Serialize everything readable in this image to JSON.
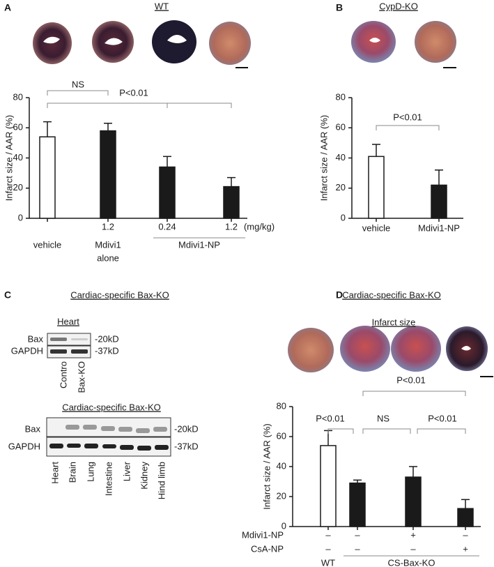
{
  "panel_labels": [
    "A",
    "B",
    "C",
    "D"
  ],
  "chart_data": [
    {
      "type": "bar",
      "title": "WT",
      "y_label": "Infarct size / AAR (%)",
      "categories": [
        null,
        "1.2",
        "0.24",
        "1.2"
      ],
      "x_unit": "(mg/kg)",
      "values": [
        54,
        58,
        34,
        21
      ],
      "errors": [
        10,
        5,
        7,
        6
      ],
      "colors": [
        "#ffffff",
        "#1a1a1a",
        "#1a1a1a",
        "#1a1a1a"
      ],
      "ylim": [
        0,
        80
      ],
      "yticks": [
        0,
        20,
        40,
        60,
        80
      ],
      "groups": [
        {
          "label": [
            "vehicle"
          ],
          "span": [
            0,
            0
          ]
        },
        {
          "label": [
            "Mdivi1",
            "alone"
          ],
          "span": [
            1,
            1
          ]
        },
        {
          "label": [
            "Mdivi1-NP"
          ],
          "span": [
            2,
            3
          ]
        }
      ],
      "brackets": [
        {
          "pair": [
            0,
            1
          ],
          "label": "NS"
        },
        {
          "pair": [
            0,
            2
          ]
        },
        {
          "pair": [
            0,
            3
          ],
          "label": "P<0.01"
        }
      ]
    },
    {
      "type": "bar",
      "title": "CypD-KO",
      "y_label": "Infarct size / AAR (%)",
      "categories": [
        "vehicle",
        "Mdivi1-NP"
      ],
      "values": [
        41,
        22
      ],
      "errors": [
        8,
        10
      ],
      "colors": [
        "#ffffff",
        "#1a1a1a"
      ],
      "ylim": [
        0,
        80
      ],
      "yticks": [
        0,
        20,
        40,
        60,
        80
      ],
      "brackets": [
        {
          "pair": [
            0,
            1
          ],
          "label": "P<0.01"
        }
      ]
    },
    {
      "type": "bar",
      "title": "Cardiac-specific Bax-KO",
      "subtitle": "Infarct size",
      "y_label": "Infarct size / AAR (%)",
      "values": [
        54,
        29,
        33,
        12
      ],
      "errors": [
        10,
        2,
        7,
        6
      ],
      "colors": [
        "#ffffff",
        "#1a1a1a",
        "#1a1a1a",
        "#1a1a1a"
      ],
      "ylim": [
        0,
        80
      ],
      "yticks": [
        0,
        20,
        40,
        60,
        80
      ],
      "conditions": [
        {
          "name": "Mdivi1-NP",
          "values": [
            "–",
            "–",
            "+",
            "–"
          ]
        },
        {
          "name": "CsA-NP",
          "values": [
            "–",
            "–",
            "–",
            "+"
          ]
        }
      ],
      "groups": [
        {
          "label": [
            "WT"
          ],
          "span": [
            0,
            0
          ]
        },
        {
          "label": [
            "CS-Bax-KO"
          ],
          "span": [
            1,
            3
          ]
        }
      ],
      "brackets": [
        {
          "pair": [
            0,
            1
          ],
          "label": "P<0.01"
        },
        {
          "pair": [
            1,
            2
          ],
          "label": "NS"
        },
        {
          "pair": [
            2,
            3
          ],
          "label": "P<0.01"
        },
        {
          "pair": [
            1,
            3
          ],
          "label": "P<0.01"
        }
      ]
    }
  ],
  "panel_c": {
    "title": "Cardiac-specific Bax-KO",
    "blots": [
      {
        "title": "Heart",
        "rows": [
          "Bax",
          "GAPDH"
        ],
        "sizes": [
          "-20kD",
          "-37kD"
        ],
        "lanes": [
          "Contro",
          "Bax-KO"
        ]
      },
      {
        "title": "Cardiac-specific Bax-KO",
        "rows": [
          "Bax",
          "GAPDH"
        ],
        "sizes": [
          "-20kD",
          "-37kD"
        ],
        "lanes": [
          "Heart",
          "Brain",
          "Lung",
          "Intestine",
          "Liver",
          "Kidney",
          "Hind limb"
        ]
      }
    ]
  }
}
